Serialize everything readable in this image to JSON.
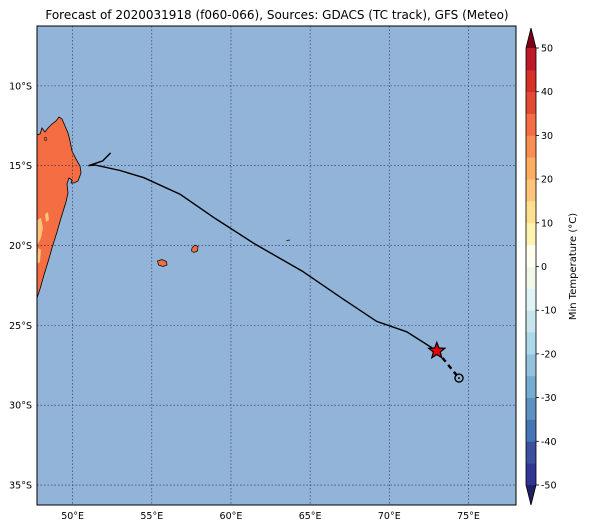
{
  "title": "Forecast of 2020031918 (f060-066), Sources: GDACS (TC track), GFS (Meteo)",
  "map": {
    "lon_range": [
      47.75,
      78.0
    ],
    "lat_range": [
      -36.25,
      -6.25
    ],
    "lon_ticks": [
      {
        "value": 50,
        "label": "50°E"
      },
      {
        "value": 55,
        "label": "55°E"
      },
      {
        "value": 60,
        "label": "60°E"
      },
      {
        "value": 65,
        "label": "65°E"
      },
      {
        "value": 70,
        "label": "70°E"
      },
      {
        "value": 75,
        "label": "75°E"
      }
    ],
    "lat_ticks": [
      {
        "value": -10,
        "label": "10°S"
      },
      {
        "value": -15,
        "label": "15°S"
      },
      {
        "value": -20,
        "label": "20°S"
      },
      {
        "value": -25,
        "label": "25°S"
      },
      {
        "value": -30,
        "label": "30°S"
      },
      {
        "value": -35,
        "label": "35°S"
      }
    ],
    "grid": true,
    "ocean_color": "#92b4d9",
    "land_color": "#f46d43"
  },
  "track": {
    "past": [
      [
        51.0,
        -15.0
      ],
      [
        51.4,
        -14.95
      ],
      [
        53.0,
        -15.3
      ],
      [
        54.5,
        -15.75
      ],
      [
        56.8,
        -16.8
      ],
      [
        59.0,
        -18.3
      ],
      [
        61.5,
        -19.9
      ],
      [
        64.5,
        -21.6
      ],
      [
        67.0,
        -23.3
      ],
      [
        69.2,
        -24.75
      ],
      [
        71.1,
        -25.4
      ],
      [
        73.0,
        -26.6
      ]
    ],
    "tail": [
      [
        51.0,
        -15.0
      ],
      [
        51.9,
        -14.7
      ],
      [
        52.4,
        -14.2
      ]
    ],
    "forecast": [
      [
        73.0,
        -26.6
      ],
      [
        74.4,
        -28.3
      ]
    ],
    "current_position": [
      73.0,
      -26.6
    ],
    "forecast_position": [
      74.4,
      -28.3
    ]
  },
  "colorbar": {
    "label": "Min Temperature (°C)",
    "min": -50,
    "max": 50,
    "step": 5,
    "ticks": [
      -50,
      -40,
      -30,
      -20,
      -10,
      0,
      10,
      20,
      30,
      40,
      50
    ],
    "colors": [
      "#313695",
      "#3d4f9f",
      "#4575b4",
      "#5d91c2",
      "#74add1",
      "#93c2dd",
      "#abd9e9",
      "#c8e5ef",
      "#e0f3f8",
      "#f0f9e8",
      "#fffff0",
      "#fff3b0",
      "#fee090",
      "#fdc47a",
      "#fdae61",
      "#f88e52",
      "#f46d43",
      "#e34a33",
      "#d73027",
      "#bd1a28",
      "#a50026"
    ],
    "under_color": "#1d2266",
    "over_color": "#7a001a"
  }
}
